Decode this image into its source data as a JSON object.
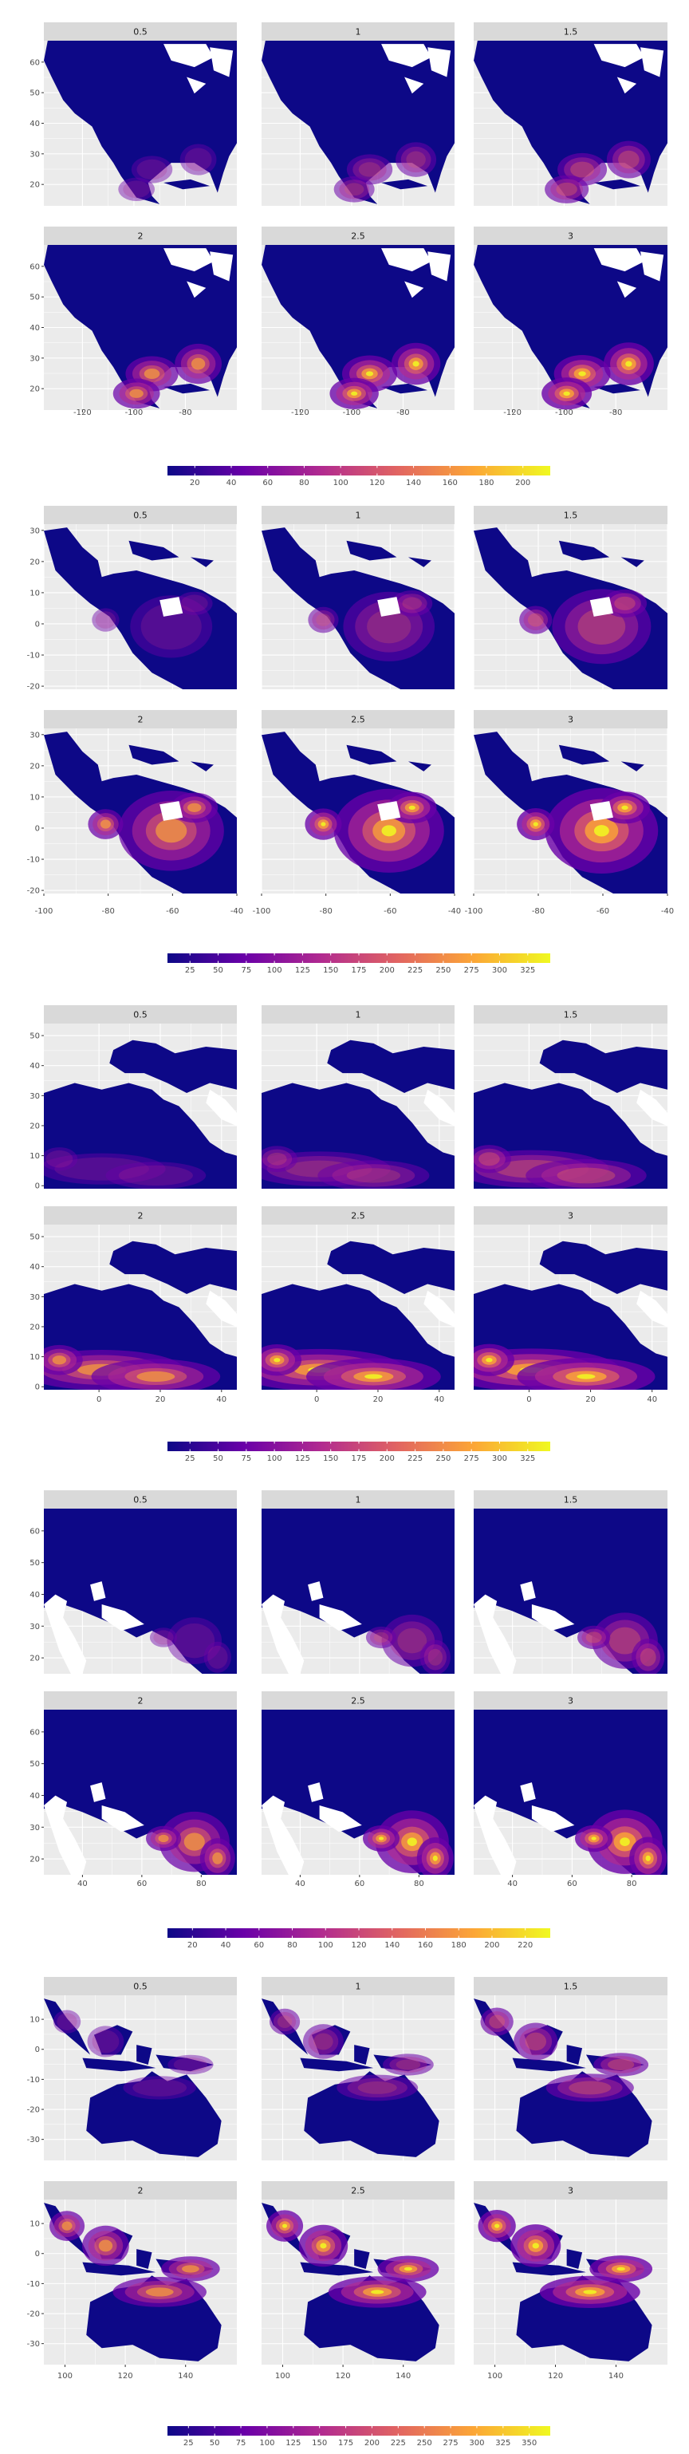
{
  "chart_data": [
    {
      "type": "heatmap",
      "region": "North America",
      "facets": [
        "0.5",
        "1",
        "1.5",
        "2",
        "2.5",
        "3"
      ],
      "x_ticks": [
        -120,
        -100,
        -80
      ],
      "xlim": [
        -135,
        -60
      ],
      "y_ticks": [
        20,
        30,
        40,
        50,
        60
      ],
      "ylim": [
        13,
        67
      ],
      "legend_ticks": [
        "20",
        "40",
        "60",
        "80",
        "100",
        "120",
        "140",
        "160",
        "180",
        "200"
      ],
      "legend_range": [
        5,
        215
      ],
      "colors": [
        "#0d0887",
        "#6a00a8",
        "#b12a90",
        "#e16462",
        "#fca636",
        "#f0f921"
      ]
    },
    {
      "type": "heatmap",
      "region": "South America",
      "facets": [
        "0.5",
        "1",
        "1.5",
        "2",
        "2.5",
        "3"
      ],
      "x_ticks": [
        -100,
        -80,
        -60,
        -40
      ],
      "xlim": [
        -100,
        -40
      ],
      "y_ticks": [
        -20,
        -10,
        0,
        10,
        20,
        30
      ],
      "ylim": [
        -21,
        32
      ],
      "legend_ticks": [
        "25",
        "50",
        "75",
        "100",
        "125",
        "150",
        "175",
        "200",
        "225",
        "250",
        "275",
        "300",
        "325"
      ],
      "legend_range": [
        5,
        345
      ],
      "colors": [
        "#0d0887",
        "#6a00a8",
        "#b12a90",
        "#e16462",
        "#fca636",
        "#f0f921"
      ]
    },
    {
      "type": "heatmap",
      "region": "Africa and Mediterranean",
      "facets": [
        "0.5",
        "1",
        "1.5",
        "2",
        "2.5",
        "3"
      ],
      "x_ticks": [
        0,
        20,
        40
      ],
      "xlim": [
        -18,
        45
      ],
      "y_ticks": [
        0,
        10,
        20,
        30,
        40,
        50
      ],
      "ylim": [
        -1,
        54
      ],
      "legend_ticks": [
        "25",
        "50",
        "75",
        "100",
        "125",
        "150",
        "175",
        "200",
        "225",
        "250",
        "275",
        "300",
        "325"
      ],
      "legend_range": [
        5,
        345
      ],
      "colors": [
        "#0d0887",
        "#6a00a8",
        "#b12a90",
        "#e16462",
        "#fca636",
        "#f0f921"
      ]
    },
    {
      "type": "heatmap",
      "region": "Central and South Asia",
      "facets": [
        "0.5",
        "1",
        "1.5",
        "2",
        "2.5",
        "3"
      ],
      "x_ticks": [
        40,
        60,
        80
      ],
      "xlim": [
        27,
        92
      ],
      "y_ticks": [
        20,
        30,
        40,
        50,
        60
      ],
      "ylim": [
        15,
        67
      ],
      "legend_ticks": [
        "20",
        "40",
        "60",
        "80",
        "100",
        "120",
        "140",
        "160",
        "180",
        "200",
        "220"
      ],
      "legend_range": [
        5,
        235
      ],
      "colors": [
        "#0d0887",
        "#6a00a8",
        "#b12a90",
        "#e16462",
        "#fca636",
        "#f0f921"
      ]
    },
    {
      "type": "heatmap",
      "region": "Southeast Asia and Australia",
      "facets": [
        "0.5",
        "1",
        "1.5",
        "2",
        "2.5",
        "3"
      ],
      "x_ticks": [
        100,
        120,
        140
      ],
      "xlim": [
        93,
        157
      ],
      "y_ticks": [
        -30,
        -20,
        -10,
        0,
        10
      ],
      "ylim": [
        -37,
        18
      ],
      "legend_ticks": [
        "25",
        "50",
        "75",
        "100",
        "125",
        "150",
        "175",
        "200",
        "225",
        "250",
        "275",
        "300",
        "325",
        "350"
      ],
      "legend_range": [
        5,
        370
      ],
      "colors": [
        "#0d0887",
        "#6a00a8",
        "#b12a90",
        "#e16462",
        "#fca636",
        "#f0f921"
      ]
    }
  ]
}
